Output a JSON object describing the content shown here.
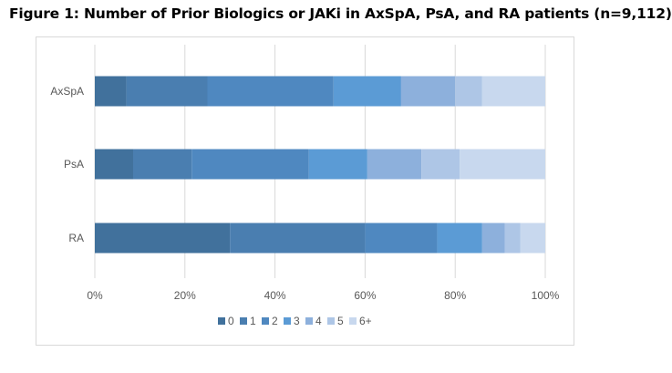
{
  "figure_title": "Figure 1: Number of Prior Biologics or JAKi in AxSpA, PsA, and RA patients (n=9,112)",
  "colors": {
    "series": [
      "#41719c",
      "#4a7eb0",
      "#4f88c0",
      "#5b9bd5",
      "#8db0dc",
      "#aec6e6",
      "#c8d8ee"
    ],
    "axis": "#d9d9d9",
    "text": "#595959"
  },
  "chart_data": {
    "type": "bar",
    "orientation": "horizontal",
    "stacked": "percent",
    "categories": [
      "AxSpA",
      "PsA",
      "RA"
    ],
    "series": [
      {
        "name": "0",
        "values": [
          7,
          8.5,
          30
        ]
      },
      {
        "name": "1",
        "values": [
          18,
          13,
          30
        ]
      },
      {
        "name": "2",
        "values": [
          28,
          26,
          16
        ]
      },
      {
        "name": "3",
        "values": [
          15,
          13,
          10
        ]
      },
      {
        "name": "4",
        "values": [
          12,
          12,
          5
        ]
      },
      {
        "name": "5",
        "values": [
          6,
          8.5,
          3.5
        ]
      },
      {
        "name": "6+",
        "values": [
          14,
          19,
          5.5
        ]
      }
    ],
    "xlim": [
      0,
      100
    ],
    "x_ticks": [
      "0%",
      "20%",
      "40%",
      "60%",
      "80%",
      "100%"
    ],
    "x_tick_values": [
      0,
      20,
      40,
      60,
      80,
      100
    ],
    "legend": {
      "position": "bottom",
      "labels": [
        "0",
        "1",
        "2",
        "3",
        "4",
        "5",
        "6+"
      ]
    },
    "grid": true
  }
}
